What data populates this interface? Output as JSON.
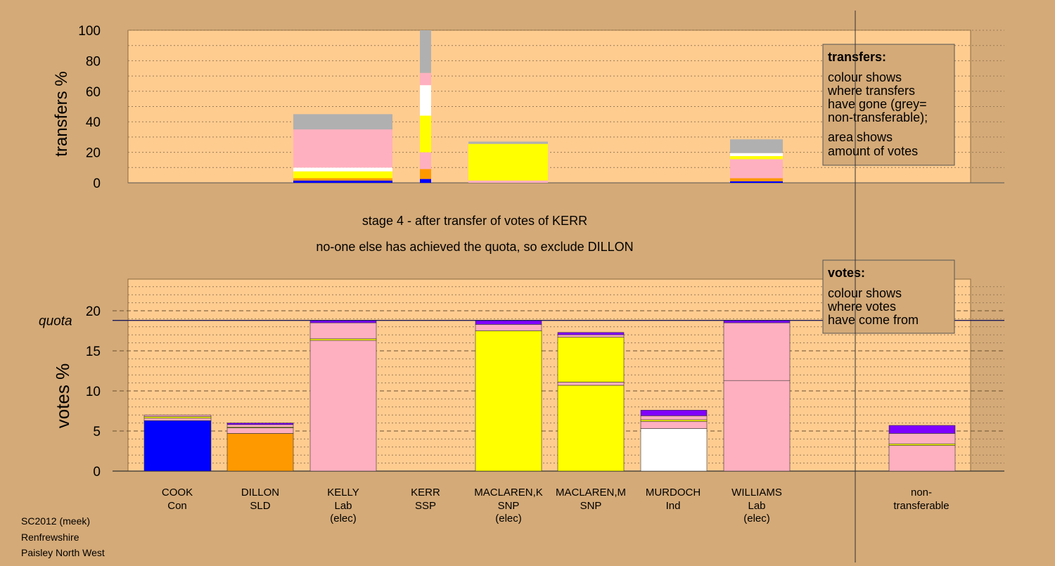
{
  "caption": {
    "stage": "stage 4 - after transfer of votes of KERR",
    "note": "no-one else has achieved the quota, so exclude DILLON"
  },
  "footer": [
    "SC2012 (meek)",
    "Renfrewshire",
    "Paisley North West"
  ],
  "colors": {
    "Con": "#0000ff",
    "SLD": "#ff9900",
    "Lab": "#ffb0c0",
    "SNP": "#ffff00",
    "Ind": "#ffffff",
    "SSP": "#8000ff",
    "nontransferable": "#b0b0b0",
    "panel": "#ffcc90",
    "background": "#d4aa78"
  },
  "candidates": [
    {
      "name": "COOK",
      "party": "Con",
      "status": ""
    },
    {
      "name": "DILLON",
      "party": "SLD",
      "status": ""
    },
    {
      "name": "KELLY",
      "party": "Lab",
      "status": "(elec)"
    },
    {
      "name": "KERR",
      "party": "SSP",
      "status": ""
    },
    {
      "name": "MACLAREN,K",
      "party": "SNP",
      "status": "(elec)"
    },
    {
      "name": "MACLAREN,M",
      "party": "SNP",
      "status": ""
    },
    {
      "name": "MURDOCH",
      "party": "Ind",
      "status": ""
    },
    {
      "name": "WILLIAMS",
      "party": "Lab",
      "status": "(elec)"
    },
    {
      "name": "non-",
      "party": "transferable",
      "status": ""
    }
  ],
  "chart_data": [
    {
      "type": "bar",
      "ylabel": "transfers %",
      "ylim": [
        0,
        100
      ],
      "yticks": [
        0,
        20,
        40,
        60,
        80,
        100
      ],
      "legend": {
        "title": "transfers:",
        "lines": [
          "colour shows",
          "where transfers",
          "have gone (grey=",
          "non-transferable);",
          "area shows",
          "amount of votes"
        ]
      },
      "bars": [
        {
          "candidate": "KELLY",
          "segments": [
            {
              "party": "Con",
              "value": 1.5
            },
            {
              "party": "SLD",
              "value": 1.5
            },
            {
              "party": "SNP",
              "value": 4.5
            },
            {
              "party": "Ind",
              "value": 2.5
            },
            {
              "party": "Lab",
              "value": 25
            },
            {
              "party": "nontransferable",
              "value": 10
            }
          ]
        },
        {
          "candidate": "KERR",
          "segments": [
            {
              "party": "Con",
              "value": 2.5
            },
            {
              "party": "SLD",
              "value": 6.5
            },
            {
              "party": "Lab",
              "value": 11
            },
            {
              "party": "SNP",
              "value": 24
            },
            {
              "party": "Ind",
              "value": 20
            },
            {
              "party": "Lab",
              "value": 8
            },
            {
              "party": "nontransferable",
              "value": 28
            }
          ]
        },
        {
          "candidate": "MACLAREN,K",
          "segments": [
            {
              "party": "Lab",
              "value": 1.5
            },
            {
              "party": "SNP",
              "value": 24
            },
            {
              "party": "nontransferable",
              "value": 1.5
            }
          ]
        },
        {
          "candidate": "WILLIAMS",
          "segments": [
            {
              "party": "Con",
              "value": 1
            },
            {
              "party": "SLD",
              "value": 2
            },
            {
              "party": "Lab",
              "value": 12.5
            },
            {
              "party": "SNP",
              "value": 2
            },
            {
              "party": "Ind",
              "value": 2
            },
            {
              "party": "nontransferable",
              "value": 9
            }
          ]
        }
      ]
    },
    {
      "type": "bar",
      "ylabel": "votes %",
      "ylim": [
        0,
        24
      ],
      "yticks": [
        0,
        5,
        10,
        15,
        20
      ],
      "quota": 18.8,
      "quota_label": "quota",
      "legend": {
        "title": "votes:",
        "lines": [
          "colour shows",
          "where votes",
          "have come from"
        ]
      },
      "bars": [
        {
          "candidate": "COOK",
          "segments": [
            {
              "party": "Con",
              "value": 6.3
            },
            {
              "party": "Lab",
              "value": 0.3
            },
            {
              "party": "SNP",
              "value": 0.2
            },
            {
              "party": "Lab",
              "value": 0.2
            }
          ]
        },
        {
          "candidate": "DILLON",
          "segments": [
            {
              "party": "SLD",
              "value": 4.7
            },
            {
              "party": "Lab",
              "value": 0.7
            },
            {
              "party": "SNP",
              "value": 0.1
            },
            {
              "party": "Lab",
              "value": 0.3
            },
            {
              "party": "SSP",
              "value": 0.2
            }
          ]
        },
        {
          "candidate": "KELLY",
          "segments": [
            {
              "party": "Lab",
              "value": 16.3
            },
            {
              "party": "SNP",
              "value": 0.2
            },
            {
              "party": "Lab",
              "value": 2.0
            },
            {
              "party": "SSP",
              "value": 0.3
            }
          ]
        },
        {
          "candidate": "KERR",
          "segments": []
        },
        {
          "candidate": "MACLAREN,K",
          "segments": [
            {
              "party": "SNP",
              "value": 17.5
            },
            {
              "party": "Lab",
              "value": 0.8
            },
            {
              "party": "SSP",
              "value": 0.5
            }
          ]
        },
        {
          "candidate": "MACLAREN,M",
          "segments": [
            {
              "party": "SNP",
              "value": 10.7
            },
            {
              "party": "Lab",
              "value": 0.4
            },
            {
              "party": "SNP",
              "value": 5.6
            },
            {
              "party": "Lab",
              "value": 0.3
            },
            {
              "party": "SSP",
              "value": 0.3
            }
          ]
        },
        {
          "candidate": "MURDOCH",
          "segments": [
            {
              "party": "Ind",
              "value": 5.3
            },
            {
              "party": "Lab",
              "value": 0.9
            },
            {
              "party": "SNP",
              "value": 0.2
            },
            {
              "party": "Lab",
              "value": 0.5
            },
            {
              "party": "SSP",
              "value": 0.7
            }
          ]
        },
        {
          "candidate": "WILLIAMS",
          "segments": [
            {
              "party": "Lab",
              "value": 11.3
            },
            {
              "party": "Lab",
              "value": 7.2
            },
            {
              "party": "SSP",
              "value": 0.3
            }
          ]
        },
        {
          "candidate": "non-transferable",
          "segments": [
            {
              "party": "Lab",
              "value": 3.2
            },
            {
              "party": "SNP",
              "value": 0.2
            },
            {
              "party": "Lab",
              "value": 1.3
            },
            {
              "party": "SSP",
              "value": 1.0
            }
          ]
        }
      ]
    }
  ]
}
